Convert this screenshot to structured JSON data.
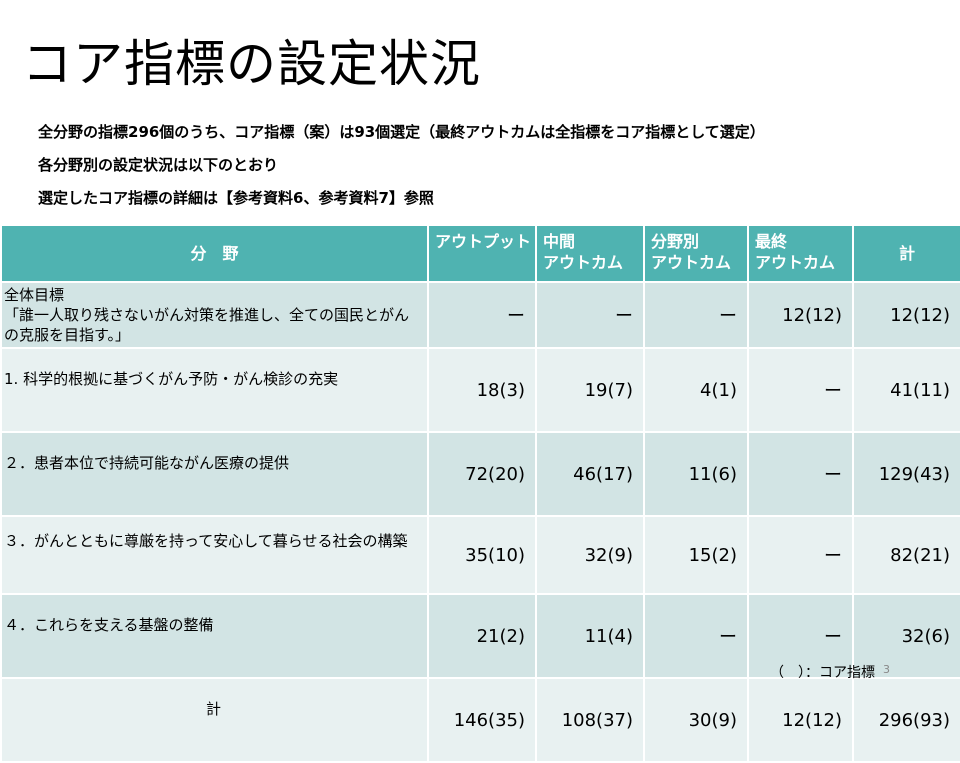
{
  "title": "コア指標の設定状況",
  "bullets": [
    "全分野の指標296個のうち、コア指標（案）は93個選定（最終アウトカムは全指標をコア指標として選定）",
    "各分野別の設定状況は以下のとおり",
    "選定したコア指標の詳細は【参考資料6、参考資料7】参照"
  ],
  "table": {
    "headers": {
      "bunya": "分　野",
      "output": "アウトプット",
      "middle": "中間\nアウトカム",
      "field": "分野別\nアウトカム",
      "final": "最終\nアウトカム",
      "total": "計"
    },
    "rows": [
      {
        "label": "全体目標\n「誰一人取り残さないがん対策を推進し、全ての国民とがんの克服を目指す。」",
        "output": "ー",
        "middle": "ー",
        "field": "ー",
        "final": "12(12)",
        "total": "12(12)"
      },
      {
        "label": "1. 科学的根拠に基づくがん予防・がん検診の充実",
        "output": "18(3)",
        "middle": "19(7)",
        "field": "4(1)",
        "final": "ー",
        "total": "41(11)"
      },
      {
        "label": "２．患者本位で持続可能ながん医療の提供",
        "output": "72(20)",
        "middle": "46(17)",
        "field": "11(6)",
        "final": "ー",
        "total": "129(43)"
      },
      {
        "label": "３．がんとともに尊厳を持って安心して暮らせる社会の構築",
        "output": "35(10)",
        "middle": "32(9)",
        "field": "15(2)",
        "final": "ー",
        "total": "82(21)"
      },
      {
        "label": "４．これらを支える基盤の整備",
        "output": "21(2)",
        "middle": "11(4)",
        "field": "ー",
        "final": "ー",
        "total": "32(6)"
      },
      {
        "label": "計",
        "output": "146(35)",
        "middle": "108(37)",
        "field": "30(9)",
        "final": "12(12)",
        "total": "296(93)"
      }
    ]
  },
  "note": "（　）：コア指標",
  "page_number": "3"
}
